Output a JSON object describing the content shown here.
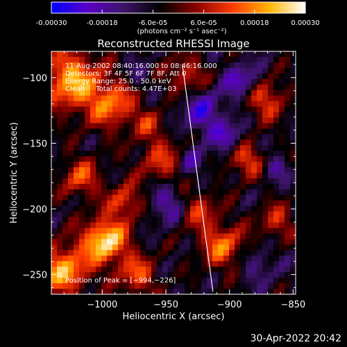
{
  "colorbar": {
    "tick_labels": [
      "-0.00030",
      "-0.00018",
      "-6.0e-05",
      "6.0e-05",
      "0.00018",
      "0.00030"
    ],
    "tick_values": [
      -0.0003,
      -0.00018,
      -6e-05,
      6e-05,
      0.00018,
      0.0003
    ],
    "range": [
      -0.0003,
      0.0003
    ],
    "unit_label": "(photons cm⁻² s⁻¹ asec⁻²)",
    "colors": [
      "#0000ff",
      "#5a00c8",
      "#3c1468",
      "#000000",
      "#8c0000",
      "#ff3c00",
      "#ffb400",
      "#ffffff"
    ]
  },
  "chart_data": {
    "type": "heatmap",
    "title": "Reconstructed RHESSI Image",
    "xlabel": "Heliocentric X (arcsec)",
    "ylabel": "Heliocentric Y (arcsec)",
    "xlim": [
      -1040,
      -848
    ],
    "ylim": [
      -265,
      -80
    ],
    "x_ticks": [
      -1000,
      -950,
      -900,
      -850
    ],
    "x_tick_labels": [
      "−1000",
      "−950",
      "−900",
      "−850"
    ],
    "y_ticks": [
      -250,
      -200,
      -150,
      -100
    ],
    "y_tick_labels": [
      "−250",
      "−200",
      "−150",
      "−100"
    ],
    "annotations": [
      "11-Aug-2002 08:40:16.000 to 08:46:16.000",
      "Detectors: 3F 4F 5F 6F 7F 8F, Att 0",
      "Energy Range: 25.0 - 50.0 keV",
      "Clean     Total counts: 4.47E+03"
    ],
    "peak_label": "Position of Peak = [−994,−226]",
    "peak_position": [
      -994,
      -226
    ],
    "limb_line": [
      [
        -937,
        -90
      ],
      [
        -913,
        -263
      ]
    ],
    "grid": false
  },
  "footer": {
    "timestamp": "30-Apr-2022 20:42"
  }
}
